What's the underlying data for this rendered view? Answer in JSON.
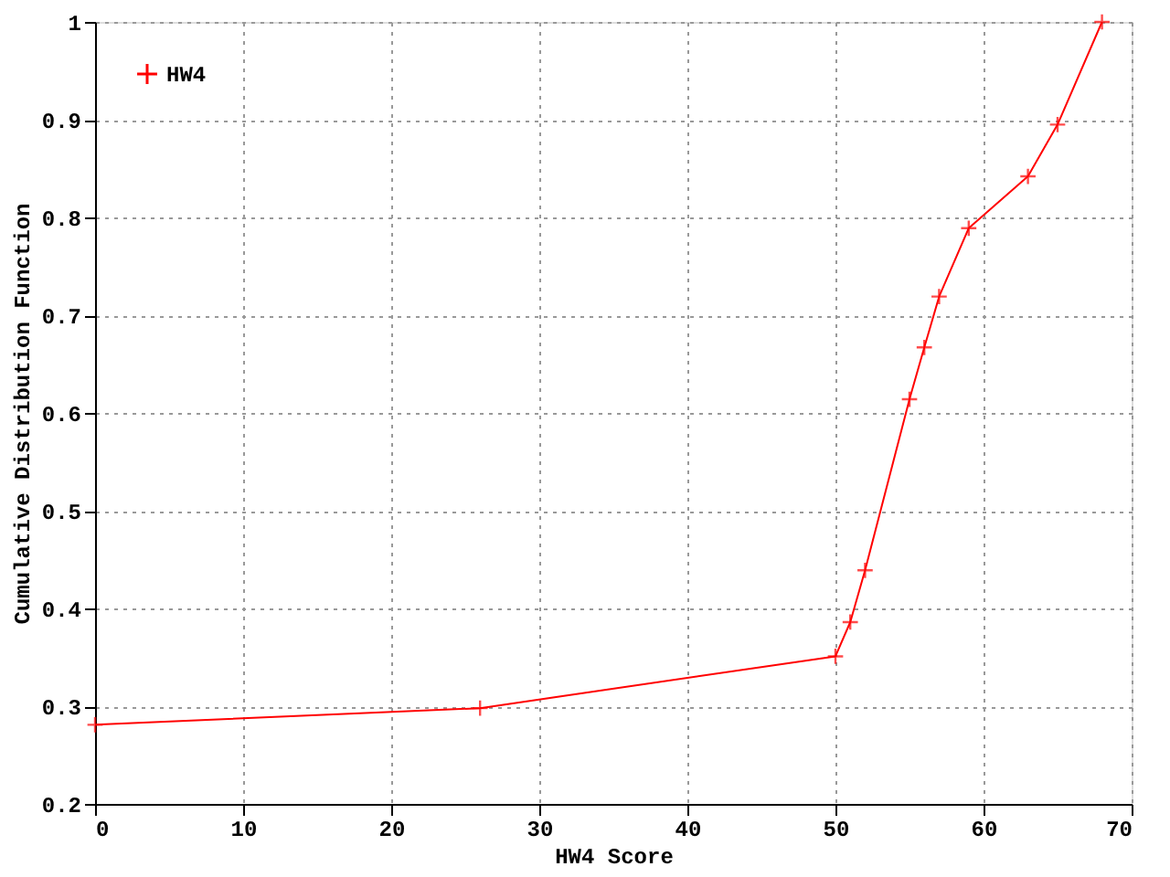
{
  "chart_data": {
    "type": "line",
    "xlabel": "HW4 Score",
    "ylabel": "Cumulative Distribution Function",
    "x": [
      0,
      26,
      50,
      51,
      52,
      55,
      56,
      57,
      59,
      63,
      65,
      68
    ],
    "series": [
      {
        "name": "HW4",
        "color": "#ff0000",
        "values": [
          0.281,
          0.298,
          0.351,
          0.386,
          0.439,
          0.614,
          0.667,
          0.719,
          0.789,
          0.842,
          0.895,
          1.0
        ]
      }
    ],
    "xlim": [
      0,
      70
    ],
    "xticks": [
      0,
      10,
      20,
      30,
      40,
      50,
      60,
      70
    ],
    "ylim": [
      0.2,
      1
    ],
    "yticks": [
      0.2,
      0.3,
      0.4,
      0.5,
      0.6,
      0.7,
      0.8,
      0.9,
      1
    ],
    "grid": true,
    "legend": "top left",
    "marker": "cross",
    "line_style": "solid"
  }
}
